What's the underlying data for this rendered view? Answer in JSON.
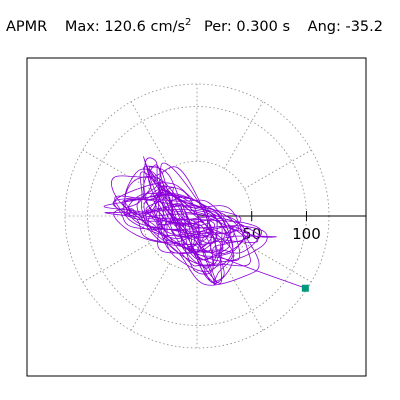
{
  "header": {
    "name": "APMR",
    "max_label": "Max:",
    "max_value": "120.6",
    "max_unit": "cm/s",
    "max_unit_exp": "2",
    "per_label": "Per:",
    "per_value": "0.300 s",
    "ang_label": "Ang:",
    "ang_value": "-35.2"
  },
  "chart_data": {
    "type": "polar-orbit",
    "radial_ticks": [
      50,
      100
    ],
    "radial_tick_labels": [
      "50",
      "100"
    ],
    "r_max": 120.6,
    "angle_deg": -35.2,
    "grid": true,
    "grid_angles_deg": [
      0,
      30,
      60,
      90,
      120,
      150,
      180,
      210,
      240,
      270,
      300,
      330
    ],
    "trace_color": "#8b00d9",
    "end_marker_color": "#009977",
    "end_point": {
      "x": 99,
      "y": -66
    },
    "center_offset": {
      "x": -12,
      "y": -6
    },
    "orbit_spread": {
      "major": 78,
      "minor": 28
    },
    "orbit_count": 380
  }
}
